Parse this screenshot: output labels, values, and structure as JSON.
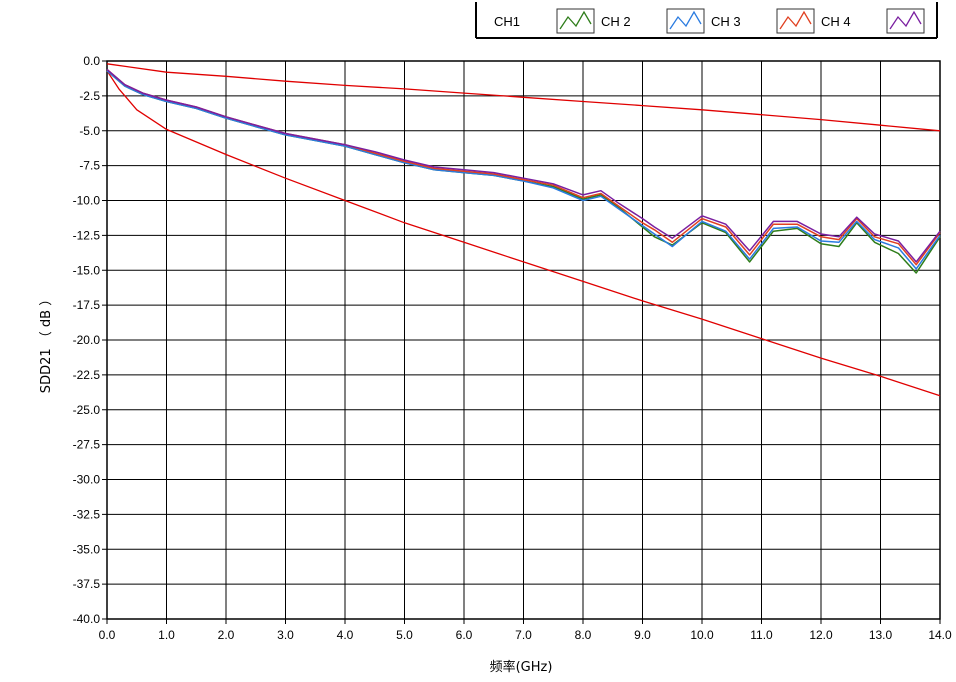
{
  "chart_data": {
    "type": "line",
    "title": "",
    "xlabel": "频率(GHz)",
    "ylabel": "SDD21 （ dB ）",
    "xlim": [
      0,
      14
    ],
    "ylim": [
      -40,
      0
    ],
    "x_ticks": [
      "0.0",
      "1.0",
      "2.0",
      "3.0",
      "4.0",
      "5.0",
      "6.0",
      "7.0",
      "8.0",
      "9.0",
      "10.0",
      "11.0",
      "12.0",
      "13.0",
      "14.0"
    ],
    "y_ticks": [
      "0.0",
      "-2.5",
      "-5.0",
      "-7.5",
      "-10.0",
      "-12.5",
      "-15.0",
      "-17.5",
      "-20.0",
      "-22.5",
      "-25.0",
      "-27.5",
      "-30.0",
      "-32.5",
      "-35.0",
      "-37.5",
      "-40.0"
    ],
    "grid": true,
    "legend_position": "top-right",
    "legend": [
      "CH1",
      "CH 2",
      "CH 3",
      "CH 4"
    ],
    "colors": {
      "grid": "#000000",
      "limit": "#e00000",
      "ch2": "#2e7d1a",
      "ch3": "#2a7be0",
      "ch4": "#e04020",
      "ch5": "#7a1fa0"
    },
    "series": [
      {
        "name": "",
        "role": "upper-limit",
        "x": [
          0.0,
          1.0,
          2.0,
          3.0,
          4.0,
          5.0,
          6.0,
          7.0,
          8.0,
          9.0,
          10.0,
          11.0,
          12.0,
          13.0,
          14.0
        ],
        "y": [
          -0.2,
          -0.8,
          -1.1,
          -1.45,
          -1.75,
          -2.0,
          -2.3,
          -2.6,
          -2.9,
          -3.2,
          -3.5,
          -3.85,
          -4.2,
          -4.6,
          -5.0
        ]
      },
      {
        "name": "",
        "role": "lower-limit",
        "x": [
          0.0,
          0.2,
          0.5,
          1.0,
          2.0,
          3.0,
          4.0,
          5.0,
          6.0,
          7.0,
          8.0,
          9.0,
          10.0,
          11.0,
          12.0,
          13.0,
          14.0
        ],
        "y": [
          -0.7,
          -2.0,
          -3.5,
          -4.9,
          -6.7,
          -8.4,
          -10.0,
          -11.6,
          -13.0,
          -14.4,
          -15.8,
          -17.2,
          -18.5,
          -19.9,
          -21.3,
          -22.6,
          -24.0
        ]
      },
      {
        "name": "CH 2",
        "x": [
          0.0,
          0.3,
          0.6,
          1.0,
          1.5,
          2.0,
          2.5,
          3.0,
          3.5,
          4.0,
          4.5,
          5.0,
          5.5,
          6.0,
          6.5,
          7.0,
          7.5,
          8.0,
          8.3,
          8.6,
          9.0,
          9.2,
          9.5,
          10.0,
          10.4,
          10.8,
          11.2,
          11.6,
          12.0,
          12.3,
          12.6,
          12.9,
          13.3,
          13.6,
          14.0
        ],
        "y": [
          -0.6,
          -1.7,
          -2.3,
          -2.8,
          -3.3,
          -4.0,
          -4.6,
          -5.2,
          -5.6,
          -6.0,
          -6.5,
          -7.1,
          -7.6,
          -7.8,
          -8.0,
          -8.4,
          -8.8,
          -9.6,
          -9.3,
          -10.2,
          -11.3,
          -11.9,
          -12.7,
          -11.1,
          -11.7,
          -13.6,
          -11.5,
          -11.5,
          -12.4,
          -12.6,
          -11.2,
          -12.4,
          -12.9,
          -14.4,
          -12.2
        ]
      },
      {
        "name": "CH 3",
        "x": [
          0.0,
          0.3,
          0.6,
          1.0,
          1.5,
          2.0,
          2.5,
          3.0,
          3.5,
          4.0,
          4.5,
          5.0,
          5.5,
          6.0,
          6.5,
          7.0,
          7.5,
          8.0,
          8.3,
          8.6,
          9.0,
          9.2,
          9.5,
          10.0,
          10.4,
          10.8,
          11.2,
          11.6,
          12.0,
          12.3,
          12.6,
          12.9,
          13.3,
          13.6,
          14.0
        ],
        "y": [
          -0.7,
          -1.8,
          -2.4,
          -2.9,
          -3.4,
          -4.1,
          -4.7,
          -5.3,
          -5.7,
          -6.1,
          -6.7,
          -7.3,
          -7.8,
          -8.0,
          -8.2,
          -8.6,
          -9.1,
          -10.0,
          -9.7,
          -10.6,
          -11.8,
          -12.4,
          -13.3,
          -11.5,
          -12.2,
          -14.2,
          -12.0,
          -11.9,
          -12.9,
          -13.0,
          -11.5,
          -12.8,
          -13.4,
          -14.9,
          -12.5
        ]
      },
      {
        "name": "CH 4",
        "x": [
          0.0,
          0.3,
          0.6,
          1.0,
          1.5,
          2.0,
          2.5,
          3.0,
          3.5,
          4.0,
          4.5,
          5.0,
          5.5,
          6.0,
          6.5,
          7.0,
          7.5,
          8.0,
          8.3,
          8.6,
          9.0,
          9.2,
          9.5,
          10.0,
          10.4,
          10.8,
          11.2,
          11.6,
          12.0,
          12.3,
          12.6,
          12.9,
          13.3,
          13.6,
          14.0
        ],
        "y": [
          -0.6,
          -1.7,
          -2.3,
          -2.8,
          -3.3,
          -4.0,
          -4.6,
          -5.2,
          -5.6,
          -6.0,
          -6.6,
          -7.2,
          -7.7,
          -7.9,
          -8.1,
          -8.5,
          -8.9,
          -9.8,
          -9.5,
          -10.4,
          -11.6,
          -12.1,
          -13.0,
          -11.3,
          -11.9,
          -13.9,
          -11.7,
          -11.7,
          -12.6,
          -12.8,
          -11.3,
          -12.6,
          -13.1,
          -14.6,
          -12.3
        ]
      },
      {
        "name": "",
        "x": [
          0.0,
          0.3,
          0.6,
          1.0,
          1.5,
          2.0,
          2.5,
          3.0,
          3.5,
          4.0,
          4.5,
          5.0,
          5.5,
          6.0,
          6.5,
          7.0,
          7.5,
          8.0,
          8.3,
          8.6,
          9.0,
          9.2,
          9.5,
          10.0,
          10.4,
          10.8,
          11.2,
          11.6,
          12.0,
          12.3,
          12.6,
          12.9,
          13.3,
          13.6,
          14.0
        ],
        "y": [
          -0.7,
          -1.8,
          -2.4,
          -2.9,
          -3.4,
          -4.1,
          -4.7,
          -5.3,
          -5.7,
          -6.1,
          -6.7,
          -7.3,
          -7.8,
          -8.0,
          -8.2,
          -8.6,
          -9.0,
          -9.9,
          -9.6,
          -10.5,
          -11.9,
          -12.6,
          -13.2,
          -11.6,
          -12.3,
          -14.4,
          -12.2,
          -12.0,
          -13.1,
          -13.3,
          -11.6,
          -13.0,
          -13.8,
          -15.2,
          -12.6
        ]
      }
    ]
  }
}
